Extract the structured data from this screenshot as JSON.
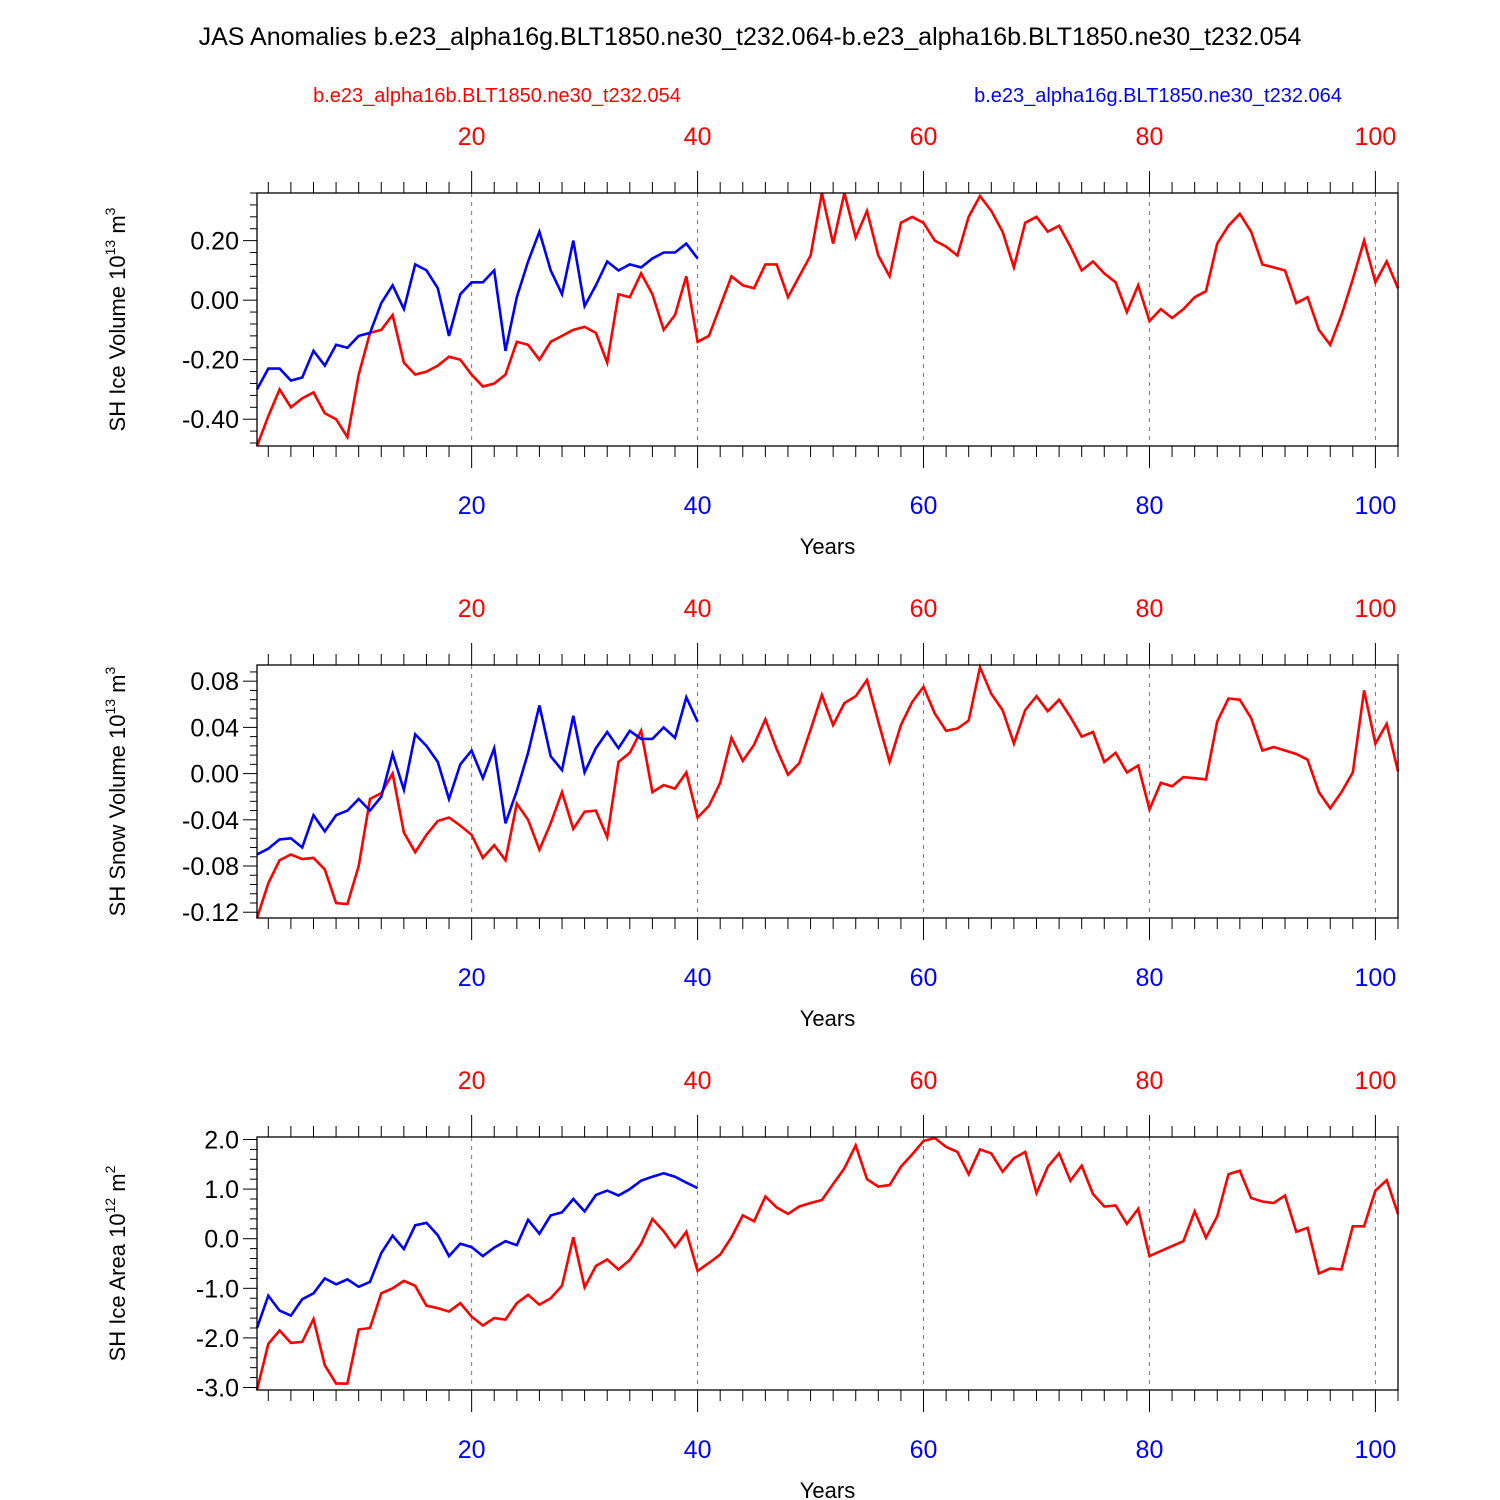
{
  "title": "JAS Anomalies b.e23_alpha16g.BLT1850.ne30_t232.064-b.e23_alpha16b.BLT1850.ne30_t232.054",
  "legend": {
    "left": {
      "label": "b.e23_alpha16b.BLT1850.ne30_t232.054",
      "color": "#ff0000"
    },
    "right": {
      "label": "b.e23_alpha16g.BLT1850.ne30_t232.064",
      "color": "#0000ff"
    }
  },
  "chart_data": [
    {
      "type": "line",
      "ylabel": "SH Ice Volume 10",
      "ylabel_exp": "13",
      "ylabel_unit": " m",
      "ylabel_unit_exp": "3",
      "xlabel": "Years",
      "xlim": [
        1,
        102
      ],
      "ylim": [
        -0.49,
        0.36
      ],
      "yticks": [
        -0.4,
        -0.2,
        0.0,
        0.2
      ],
      "ytick_labels": [
        "-0.40",
        "-0.20",
        "0.00",
        "0.20"
      ],
      "xticks": [
        20,
        40,
        60,
        80,
        100
      ],
      "xtick_labels": [
        "20",
        "40",
        "60",
        "80",
        "100"
      ],
      "series": [
        {
          "name": "b.e23_alpha16g.BLT1850.ne30_t232.064",
          "color": "#0000ff",
          "start": 1,
          "values": [
            -0.3,
            -0.23,
            -0.23,
            -0.27,
            -0.26,
            -0.17,
            -0.22,
            -0.15,
            -0.16,
            -0.12,
            -0.11,
            -0.01,
            0.05,
            -0.03,
            0.12,
            0.1,
            0.04,
            -0.12,
            0.02,
            0.06,
            0.06,
            0.1,
            -0.17,
            0.01,
            0.13,
            0.23,
            0.1,
            0.02,
            0.2,
            -0.02,
            0.05,
            0.13,
            0.1,
            0.12,
            0.11,
            0.14,
            0.16,
            0.16,
            0.19,
            0.14
          ]
        },
        {
          "name": "b.e23_alpha16b.BLT1850.ne30_t232.054",
          "color": "#ff0000",
          "start": 1,
          "values": [
            -0.49,
            -0.39,
            -0.3,
            -0.36,
            -0.33,
            -0.31,
            -0.38,
            -0.4,
            -0.46,
            -0.25,
            -0.11,
            -0.1,
            -0.05,
            -0.21,
            -0.25,
            -0.24,
            -0.22,
            -0.19,
            -0.2,
            -0.25,
            -0.29,
            -0.28,
            -0.25,
            -0.14,
            -0.15,
            -0.2,
            -0.14,
            -0.12,
            -0.1,
            -0.09,
            -0.11,
            -0.21,
            0.02,
            0.01,
            0.09,
            0.02,
            -0.1,
            -0.05,
            0.08,
            -0.14,
            -0.12,
            -0.02,
            0.08,
            0.05,
            0.04,
            0.12,
            0.12,
            0.01,
            0.08,
            0.15,
            0.36,
            0.19,
            0.36,
            0.21,
            0.3,
            0.15,
            0.08,
            0.26,
            0.28,
            0.26,
            0.2,
            0.18,
            0.15,
            0.28,
            0.35,
            0.3,
            0.23,
            0.11,
            0.26,
            0.28,
            0.23,
            0.25,
            0.18,
            0.1,
            0.13,
            0.09,
            0.06,
            -0.04,
            0.05,
            -0.07,
            -0.03,
            -0.06,
            -0.03,
            0.01,
            0.03,
            0.19,
            0.25,
            0.29,
            0.23,
            0.12,
            0.11,
            0.1,
            -0.01,
            0.01,
            -0.1,
            -0.15,
            -0.05,
            0.07,
            0.2,
            0.06,
            0.13,
            0.04
          ]
        }
      ]
    },
    {
      "type": "line",
      "ylabel": "SH Snow Volume 10",
      "ylabel_exp": "13",
      "ylabel_unit": " m",
      "ylabel_unit_exp": "3",
      "xlabel": "Years",
      "xlim": [
        1,
        102
      ],
      "ylim": [
        -0.125,
        0.094
      ],
      "yticks": [
        -0.12,
        -0.08,
        -0.04,
        0.0,
        0.04,
        0.08
      ],
      "ytick_labels": [
        "-0.12",
        "-0.08",
        "-0.04",
        "0.00",
        "0.04",
        "0.08"
      ],
      "xticks": [
        20,
        40,
        60,
        80,
        100
      ],
      "xtick_labels": [
        "20",
        "40",
        "60",
        "80",
        "100"
      ],
      "series": [
        {
          "name": "b.e23_alpha16g.BLT1850.ne30_t232.064",
          "color": "#0000ff",
          "start": 1,
          "values": [
            -0.07,
            -0.065,
            -0.057,
            -0.056,
            -0.064,
            -0.036,
            -0.05,
            -0.036,
            -0.032,
            -0.022,
            -0.032,
            -0.02,
            0.017,
            -0.014,
            0.034,
            0.024,
            0.01,
            -0.022,
            0.008,
            0.02,
            -0.004,
            0.022,
            -0.043,
            -0.015,
            0.018,
            0.059,
            0.015,
            0.003,
            0.05,
            0.001,
            0.022,
            0.036,
            0.022,
            0.037,
            0.03,
            0.03,
            0.04,
            0.031,
            0.066,
            0.045
          ]
        },
        {
          "name": "b.e23_alpha16b.BLT1850.ne30_t232.054",
          "color": "#ff0000",
          "start": 1,
          "values": [
            -0.125,
            -0.095,
            -0.075,
            -0.07,
            -0.074,
            -0.073,
            -0.083,
            -0.112,
            -0.113,
            -0.08,
            -0.022,
            -0.017,
            0.0,
            -0.051,
            -0.068,
            -0.053,
            -0.041,
            -0.038,
            -0.045,
            -0.053,
            -0.073,
            -0.062,
            -0.075,
            -0.026,
            -0.04,
            -0.066,
            -0.043,
            -0.016,
            -0.048,
            -0.033,
            -0.032,
            -0.055,
            0.01,
            0.018,
            0.037,
            -0.016,
            -0.01,
            -0.013,
            0.001,
            -0.038,
            -0.028,
            -0.008,
            0.031,
            0.011,
            0.025,
            0.047,
            0.021,
            -0.001,
            0.009,
            0.038,
            0.068,
            0.042,
            0.061,
            0.067,
            0.081,
            0.045,
            0.01,
            0.042,
            0.062,
            0.075,
            0.052,
            0.037,
            0.039,
            0.046,
            0.092,
            0.069,
            0.055,
            0.026,
            0.055,
            0.067,
            0.054,
            0.064,
            0.049,
            0.032,
            0.036,
            0.01,
            0.018,
            0.001,
            0.007,
            -0.031,
            -0.008,
            -0.011,
            -0.003,
            -0.004,
            -0.005,
            0.045,
            0.065,
            0.064,
            0.048,
            0.02,
            0.023,
            0.02,
            0.017,
            0.012,
            -0.016,
            -0.03,
            -0.016,
            0.001,
            0.072,
            0.026,
            0.043,
            0.002
          ]
        }
      ]
    },
    {
      "type": "line",
      "ylabel": "SH Ice Area 10",
      "ylabel_exp": "12",
      "ylabel_unit": " m",
      "ylabel_unit_exp": "2",
      "xlabel": "Years",
      "xlim": [
        1,
        102
      ],
      "ylim": [
        -3.05,
        2.05
      ],
      "yticks": [
        -3.0,
        -2.0,
        -1.0,
        0.0,
        1.0,
        2.0
      ],
      "ytick_labels": [
        "-3.0",
        "-2.0",
        "-1.0",
        "0.0",
        "1.0",
        "2.0"
      ],
      "xticks": [
        20,
        40,
        60,
        80,
        100
      ],
      "xtick_labels": [
        "20",
        "40",
        "60",
        "80",
        "100"
      ],
      "series": [
        {
          "name": "b.e23_alpha16g.BLT1850.ne30_t232.064",
          "color": "#0000ff",
          "start": 1,
          "values": [
            -1.8,
            -1.15,
            -1.45,
            -1.55,
            -1.22,
            -1.1,
            -0.8,
            -0.92,
            -0.82,
            -0.97,
            -0.87,
            -0.29,
            0.06,
            -0.21,
            0.27,
            0.32,
            0.07,
            -0.35,
            -0.1,
            -0.17,
            -0.35,
            -0.18,
            -0.05,
            -0.13,
            0.38,
            0.1,
            0.47,
            0.53,
            0.8,
            0.55,
            0.88,
            0.97,
            0.87,
            1.0,
            1.17,
            1.25,
            1.32,
            1.25,
            1.13,
            1.02
          ]
        },
        {
          "name": "b.e23_alpha16b.BLT1850.ne30_t232.054",
          "color": "#ff0000",
          "start": 1,
          "values": [
            -3.05,
            -2.12,
            -1.85,
            -2.1,
            -2.08,
            -1.62,
            -2.55,
            -2.92,
            -2.92,
            -1.83,
            -1.8,
            -1.1,
            -1.0,
            -0.85,
            -0.95,
            -1.35,
            -1.4,
            -1.47,
            -1.3,
            -1.57,
            -1.75,
            -1.6,
            -1.63,
            -1.3,
            -1.13,
            -1.33,
            -1.2,
            -0.95,
            0.03,
            -0.98,
            -0.55,
            -0.42,
            -0.62,
            -0.43,
            -0.1,
            0.4,
            0.15,
            -0.17,
            0.14,
            -0.65,
            -0.49,
            -0.32,
            0.03,
            0.47,
            0.35,
            0.85,
            0.63,
            0.5,
            0.65,
            0.72,
            0.78,
            1.1,
            1.42,
            1.88,
            1.2,
            1.05,
            1.08,
            1.45,
            1.7,
            1.97,
            2.03,
            1.85,
            1.75,
            1.3,
            1.8,
            1.72,
            1.35,
            1.62,
            1.75,
            0.92,
            1.45,
            1.72,
            1.17,
            1.47,
            0.9,
            0.65,
            0.67,
            0.3,
            0.6,
            -0.35,
            -0.25,
            -0.15,
            -0.05,
            0.55,
            0.02,
            0.45,
            1.3,
            1.37,
            0.82,
            0.75,
            0.72,
            0.87,
            0.14,
            0.22,
            -0.7,
            -0.6,
            -0.62,
            0.25,
            0.25,
            0.97,
            1.18,
            0.5
          ]
        }
      ]
    }
  ]
}
